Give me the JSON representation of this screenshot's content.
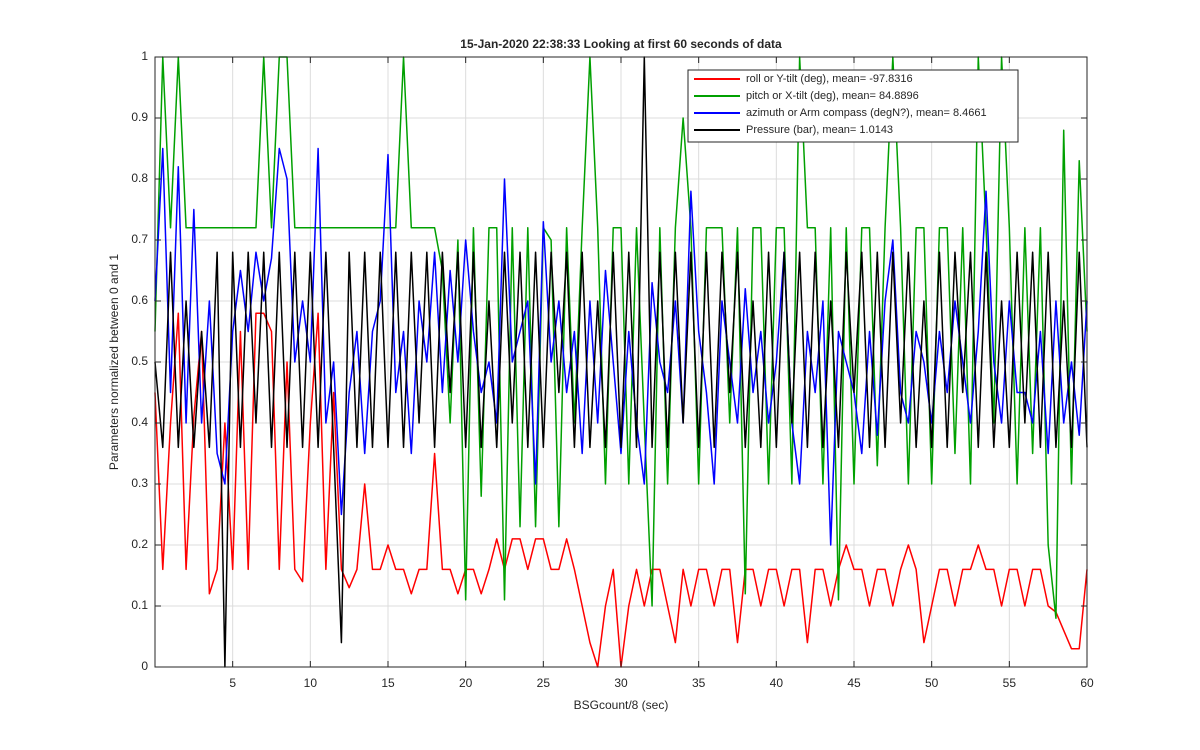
{
  "chart_data": {
    "type": "line",
    "title": "15-Jan-2020 22:38:33 Looking at first 60 seconds of data",
    "xlabel": "BSGcount/8 (sec)",
    "ylabel": "Parameters normalized between 0 and 1",
    "x": [
      0,
      0.5,
      1,
      1.5,
      2,
      2.5,
      3,
      3.5,
      4,
      4.5,
      5,
      5.5,
      6,
      6.5,
      7,
      7.5,
      8,
      8.5,
      9,
      9.5,
      10,
      10.5,
      11,
      11.5,
      12,
      12.5,
      13,
      13.5,
      14,
      14.5,
      15,
      15.5,
      16,
      16.5,
      17,
      17.5,
      18,
      18.5,
      19,
      19.5,
      20,
      20.5,
      21,
      21.5,
      22,
      22.5,
      23,
      23.5,
      24,
      24.5,
      25,
      25.5,
      26,
      26.5,
      27,
      27.5,
      28,
      28.5,
      29,
      29.5,
      30,
      30.5,
      31,
      31.5,
      32,
      32.5,
      33,
      33.5,
      34,
      34.5,
      35,
      35.5,
      36,
      36.5,
      37,
      37.5,
      38,
      38.5,
      39,
      39.5,
      40,
      40.5,
      41,
      41.5,
      42,
      42.5,
      43,
      43.5,
      44,
      44.5,
      45,
      45.5,
      46,
      46.5,
      47,
      47.5,
      48,
      48.5,
      49,
      49.5,
      50,
      50.5,
      51,
      51.5,
      52,
      52.5,
      53,
      53.5,
      54,
      54.5,
      55,
      55.5,
      56,
      56.5,
      57,
      57.5,
      58,
      58.5,
      59,
      59.5,
      60
    ],
    "series": [
      {
        "name": "roll or Y-tilt (deg), mean= -97.8316",
        "color": "#ff0000",
        "values": [
          0.45,
          0.16,
          0.4,
          0.58,
          0.16,
          0.41,
          0.55,
          0.12,
          0.16,
          0.4,
          0.16,
          0.55,
          0.16,
          0.58,
          0.58,
          0.55,
          0.16,
          0.5,
          0.16,
          0.14,
          0.4,
          0.58,
          0.16,
          0.45,
          0.16,
          0.13,
          0.16,
          0.3,
          0.16,
          0.16,
          0.2,
          0.16,
          0.16,
          0.12,
          0.16,
          0.16,
          0.35,
          0.16,
          0.16,
          0.12,
          0.16,
          0.16,
          0.12,
          0.16,
          0.21,
          0.16,
          0.21,
          0.21,
          0.16,
          0.21,
          0.21,
          0.16,
          0.16,
          0.21,
          0.16,
          0.1,
          0.04,
          0,
          0.1,
          0.16,
          0,
          0.1,
          0.16,
          0.1,
          0.16,
          0.16,
          0.1,
          0.04,
          0.16,
          0.1,
          0.16,
          0.16,
          0.1,
          0.16,
          0.16,
          0.04,
          0.16,
          0.16,
          0.1,
          0.16,
          0.16,
          0.1,
          0.16,
          0.16,
          0.04,
          0.16,
          0.16,
          0.1,
          0.16,
          0.2,
          0.16,
          0.16,
          0.1,
          0.16,
          0.16,
          0.1,
          0.16,
          0.2,
          0.16,
          0.04,
          0.1,
          0.16,
          0.16,
          0.1,
          0.16,
          0.16,
          0.2,
          0.16,
          0.16,
          0.1,
          0.16,
          0.16,
          0.1,
          0.16,
          0.16,
          0.1,
          0.09,
          0.06,
          0.03,
          0.03,
          0.16
        ]
      },
      {
        "name": "pitch or X-tilt (deg), mean= 84.8896",
        "color": "#00a000",
        "values": [
          0.55,
          1,
          0.72,
          1,
          0.72,
          0.72,
          0.72,
          0.72,
          0.72,
          0.72,
          0.72,
          0.72,
          0.72,
          0.72,
          1,
          0.72,
          1,
          1,
          0.72,
          0.72,
          0.72,
          0.72,
          0.72,
          0.72,
          0.72,
          0.72,
          0.72,
          0.72,
          0.72,
          0.72,
          0.72,
          0.72,
          1,
          0.72,
          0.72,
          0.72,
          0.72,
          0.65,
          0.4,
          0.7,
          0.11,
          0.72,
          0.28,
          0.72,
          0.72,
          0.11,
          0.72,
          0.23,
          0.72,
          0.23,
          0.72,
          0.7,
          0.23,
          0.72,
          0.4,
          0.72,
          1,
          0.72,
          0.3,
          0.72,
          0.72,
          0.3,
          0.72,
          0.4,
          0.1,
          0.72,
          0.3,
          0.72,
          0.9,
          0.72,
          0.3,
          0.72,
          0.72,
          0.72,
          0.4,
          0.72,
          0.12,
          0.72,
          0.72,
          0.3,
          0.72,
          0.72,
          0.3,
          1,
          0.72,
          0.72,
          0.3,
          0.72,
          0.11,
          0.72,
          0.3,
          0.72,
          0.72,
          0.33,
          0.72,
          1,
          0.72,
          0.3,
          0.72,
          0.72,
          0.3,
          0.72,
          0.72,
          0.35,
          0.72,
          0.3,
          1,
          0.72,
          0.4,
          1,
          0.72,
          0.3,
          0.72,
          0.35,
          0.72,
          0.2,
          0.08,
          0.88,
          0.3,
          0.83,
          0.55
        ]
      },
      {
        "name": "azimuth or Arm compass (degN?), mean= 8.4661",
        "color": "#0000ff",
        "values": [
          0.6,
          0.85,
          0.45,
          0.82,
          0.4,
          0.75,
          0.4,
          0.6,
          0.35,
          0.3,
          0.55,
          0.65,
          0.55,
          0.68,
          0.6,
          0.67,
          0.85,
          0.8,
          0.5,
          0.6,
          0.5,
          0.85,
          0.4,
          0.5,
          0.25,
          0.45,
          0.55,
          0.35,
          0.55,
          0.6,
          0.84,
          0.45,
          0.55,
          0.35,
          0.6,
          0.5,
          0.68,
          0.45,
          0.65,
          0.5,
          0.7,
          0.55,
          0.45,
          0.5,
          0.4,
          0.8,
          0.5,
          0.55,
          0.6,
          0.3,
          0.73,
          0.5,
          0.6,
          0.45,
          0.55,
          0.35,
          0.6,
          0.4,
          0.65,
          0.5,
          0.35,
          0.55,
          0.4,
          0.3,
          0.63,
          0.5,
          0.45,
          0.6,
          0.4,
          0.78,
          0.55,
          0.45,
          0.3,
          0.6,
          0.5,
          0.4,
          0.62,
          0.45,
          0.55,
          0.4,
          0.5,
          0.68,
          0.4,
          0.3,
          0.55,
          0.45,
          0.6,
          0.2,
          0.55,
          0.5,
          0.45,
          0.35,
          0.55,
          0.38,
          0.6,
          0.7,
          0.45,
          0.4,
          0.55,
          0.5,
          0.4,
          0.55,
          0.45,
          0.6,
          0.5,
          0.4,
          0.55,
          0.78,
          0.5,
          0.4,
          0.6,
          0.45,
          0.45,
          0.4,
          0.55,
          0.35,
          0.6,
          0.4,
          0.5,
          0.38,
          0.6
        ]
      },
      {
        "name": "Pressure (bar), mean= 1.0143",
        "color": "#000000",
        "values": [
          0.5,
          0.36,
          0.68,
          0.36,
          0.6,
          0.36,
          0.55,
          0.36,
          0.68,
          0,
          0.68,
          0.36,
          0.68,
          0.4,
          0.68,
          0.36,
          0.68,
          0.36,
          0.68,
          0.36,
          0.68,
          0.36,
          0.68,
          0.36,
          0.04,
          0.68,
          0.36,
          0.68,
          0.36,
          0.68,
          0.36,
          0.68,
          0.36,
          0.68,
          0.4,
          0.68,
          0.36,
          0.68,
          0.45,
          0.68,
          0.36,
          0.68,
          0.36,
          0.6,
          0.36,
          0.68,
          0.4,
          0.68,
          0.36,
          0.68,
          0.36,
          0.68,
          0.45,
          0.68,
          0.36,
          0.68,
          0.36,
          0.6,
          0.36,
          0.68,
          0.36,
          0.68,
          0.36,
          1,
          0.36,
          0.68,
          0.36,
          0.68,
          0.4,
          0.68,
          0.36,
          0.68,
          0.36,
          0.68,
          0.45,
          0.68,
          0.36,
          0.6,
          0.36,
          0.68,
          0.36,
          0.68,
          0.4,
          0.68,
          0.36,
          0.68,
          0.36,
          0.6,
          0.36,
          0.68,
          0.45,
          0.68,
          0.36,
          0.68,
          0.36,
          0.68,
          0.4,
          0.68,
          0.36,
          0.6,
          0.36,
          0.68,
          0.36,
          0.68,
          0.45,
          0.68,
          0.36,
          0.68,
          0.36,
          0.6,
          0.36,
          0.68,
          0.4,
          0.68,
          0.36,
          0.68,
          0.36,
          0.6,
          0.36,
          0.68,
          0.36
        ]
      }
    ],
    "xlim": [
      0,
      60
    ],
    "xticks": [
      5,
      10,
      15,
      20,
      25,
      30,
      35,
      40,
      45,
      50,
      55,
      60
    ],
    "ylim": [
      0,
      1
    ],
    "yticks": [
      0,
      0.1,
      0.2,
      0.3,
      0.4,
      0.5,
      0.6,
      0.7,
      0.8,
      0.9,
      1
    ],
    "grid": true,
    "legend": "northeast"
  }
}
